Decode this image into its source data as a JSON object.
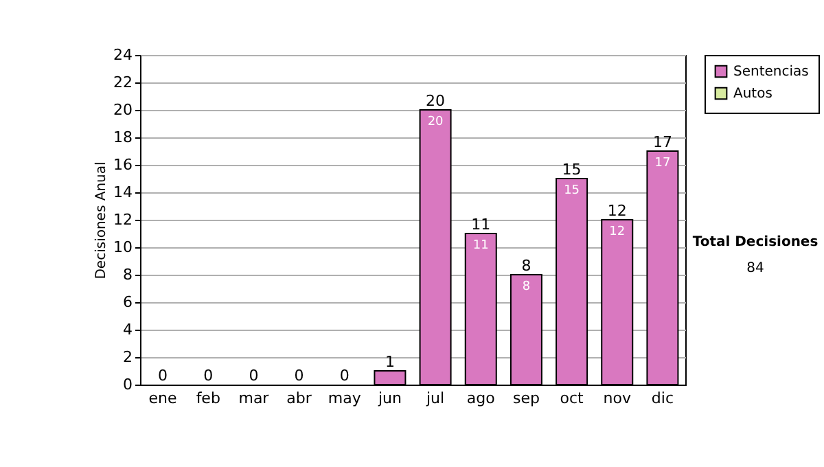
{
  "chart_data": {
    "type": "bar",
    "ylabel": "Decisiones Anual",
    "categories": [
      "ene",
      "feb",
      "mar",
      "abr",
      "may",
      "jun",
      "jul",
      "ago",
      "sep",
      "oct",
      "nov",
      "dic"
    ],
    "stacked": true,
    "series": [
      {
        "name": "Sentencias",
        "color": "#d978c0",
        "values": [
          0,
          0,
          0,
          0,
          0,
          1,
          20,
          11,
          8,
          15,
          12,
          17
        ],
        "value_labels": [
          null,
          null,
          null,
          null,
          null,
          null,
          "20",
          "11",
          "8",
          "15",
          "12",
          "17"
        ]
      },
      {
        "name": "Autos",
        "color": "#d8eba0",
        "values": [
          0,
          0,
          0,
          0,
          0,
          0,
          0,
          0,
          0,
          0,
          0,
          0
        ]
      }
    ],
    "totals": [
      "0",
      "0",
      "0",
      "0",
      "0",
      "1",
      "20",
      "11",
      "8",
      "15",
      "12",
      "17"
    ],
    "ylim": [
      0,
      24
    ],
    "yticks": [
      0,
      2,
      4,
      6,
      8,
      10,
      12,
      14,
      16,
      18,
      20,
      22,
      24
    ],
    "grid": "y",
    "legend": "right",
    "annotations": [
      "Total Decisiones",
      "84"
    ]
  }
}
